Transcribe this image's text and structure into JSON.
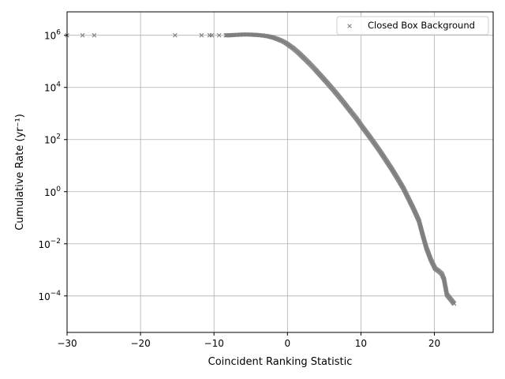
{
  "chart_data": {
    "type": "scatter",
    "xlabel": "Coincident Ranking Statistic",
    "ylabel": "Cumulative Rate (yr⁻¹)",
    "xlim": [
      -30,
      28
    ],
    "ylim_log10": [
      -5.4,
      6.9
    ],
    "yscale": "log",
    "grid": true,
    "legend_position": "top-right",
    "x_ticks": [
      {
        "value": -30,
        "label": "−30"
      },
      {
        "value": -20,
        "label": "−20"
      },
      {
        "value": -10,
        "label": "−10"
      },
      {
        "value": 0,
        "label": "0"
      },
      {
        "value": 10,
        "label": "10"
      },
      {
        "value": 20,
        "label": "20"
      }
    ],
    "y_ticks": [
      {
        "exp": -4,
        "base": "10",
        "exp_label": "−4"
      },
      {
        "exp": -2,
        "base": "10",
        "exp_label": "−2"
      },
      {
        "exp": 0,
        "base": "10",
        "exp_label": "0"
      },
      {
        "exp": 2,
        "base": "10",
        "exp_label": "2"
      },
      {
        "exp": 4,
        "base": "10",
        "exp_label": "4"
      },
      {
        "exp": 6,
        "base": "10",
        "exp_label": "6"
      }
    ],
    "series": [
      {
        "name": "Closed Box Background",
        "marker": "x",
        "color": "#7f7f7f",
        "points_log10": [
          [
            -30,
            6.0
          ],
          [
            -27.9,
            6.0
          ],
          [
            -26.3,
            6.0
          ],
          [
            -15.3,
            6.0
          ],
          [
            -11.7,
            6.0
          ],
          [
            -10.6,
            6.0
          ],
          [
            -10.3,
            6.0
          ],
          [
            -9.3,
            6.0
          ],
          [
            -8.4,
            6.0
          ],
          [
            -7.9,
            6.0
          ],
          [
            -7.4,
            6.01
          ],
          [
            -6.7,
            6.02
          ],
          [
            -6.0,
            6.03
          ],
          [
            -5.3,
            6.03
          ],
          [
            -4.6,
            6.02
          ],
          [
            -4.0,
            6.01
          ],
          [
            -3.3,
            5.99
          ],
          [
            -2.6,
            5.96
          ],
          [
            -2.0,
            5.92
          ],
          [
            -1.4,
            5.86
          ],
          [
            -0.8,
            5.79
          ],
          [
            -0.3,
            5.72
          ],
          [
            0.2,
            5.62
          ],
          [
            0.8,
            5.5
          ],
          [
            1.5,
            5.33
          ],
          [
            2.2,
            5.14
          ],
          [
            3.0,
            4.92
          ],
          [
            3.8,
            4.68
          ],
          [
            4.6,
            4.43
          ],
          [
            5.4,
            4.18
          ],
          [
            6.2,
            3.92
          ],
          [
            7.0,
            3.65
          ],
          [
            7.8,
            3.37
          ],
          [
            8.6,
            3.08
          ],
          [
            9.4,
            2.8
          ],
          [
            10.2,
            2.48
          ],
          [
            11.0,
            2.18
          ],
          [
            11.8,
            1.87
          ],
          [
            12.6,
            1.55
          ],
          [
            13.4,
            1.21
          ],
          [
            14.2,
            0.87
          ],
          [
            15.0,
            0.5
          ],
          [
            15.8,
            0.12
          ],
          [
            16.5,
            -0.28
          ],
          [
            17.2,
            -0.68
          ],
          [
            17.9,
            -1.12
          ],
          [
            18.4,
            -1.65
          ],
          [
            18.9,
            -2.15
          ],
          [
            19.5,
            -2.6
          ],
          [
            20.1,
            -2.95
          ],
          [
            20.6,
            -3.05
          ],
          [
            21.0,
            -3.15
          ],
          [
            21.3,
            -3.35
          ],
          [
            21.5,
            -3.65
          ],
          [
            21.7,
            -3.95
          ],
          [
            22.7,
            -4.3
          ]
        ]
      }
    ]
  }
}
